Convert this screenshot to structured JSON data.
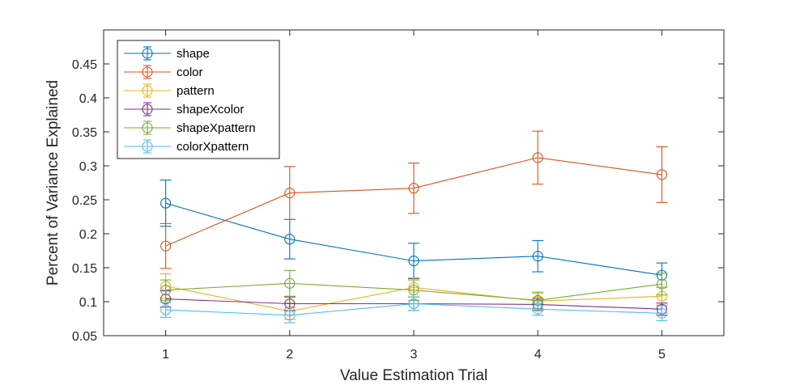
{
  "chart_data": {
    "type": "line",
    "title": "",
    "xlabel": "Value Estimation Trial",
    "ylabel": "Percent of Variance Explained",
    "x": [
      1,
      2,
      3,
      4,
      5
    ],
    "xlim": [
      0.5,
      5.5
    ],
    "ylim": [
      0.05,
      0.5
    ],
    "xticks": [
      "1",
      "2",
      "3",
      "4",
      "5"
    ],
    "yticks": [
      "0.05",
      "0.1",
      "0.15",
      "0.2",
      "0.25",
      "0.3",
      "0.35",
      "0.4",
      "0.45"
    ],
    "grid": false,
    "legend_position": "top-left",
    "marker": "open-circle",
    "series": [
      {
        "name": "shape",
        "color": "#0072BD",
        "values": [
          0.245,
          0.192,
          0.16,
          0.167,
          0.139
        ],
        "errors": [
          0.034,
          0.029,
          0.026,
          0.023,
          0.018
        ]
      },
      {
        "name": "color",
        "color": "#D95319",
        "values": [
          0.182,
          0.26,
          0.267,
          0.312,
          0.287
        ],
        "errors": [
          0.033,
          0.039,
          0.037,
          0.039,
          0.041
        ]
      },
      {
        "name": "pattern",
        "color": "#EDB120",
        "values": [
          0.123,
          0.086,
          0.121,
          0.101,
          0.108
        ],
        "errors": [
          0.018,
          0.012,
          0.014,
          0.011,
          0.013
        ]
      },
      {
        "name": "shapeXcolor",
        "color": "#7E2F8E",
        "values": [
          0.104,
          0.097,
          0.097,
          0.096,
          0.089
        ],
        "errors": [
          0.012,
          0.01,
          0.01,
          0.009,
          0.009
        ]
      },
      {
        "name": "shapeXpattern",
        "color": "#77AC30",
        "values": [
          0.117,
          0.127,
          0.117,
          0.102,
          0.126
        ],
        "errors": [
          0.015,
          0.019,
          0.015,
          0.012,
          0.016
        ]
      },
      {
        "name": "colorXpattern",
        "color": "#4DBEEE",
        "values": [
          0.088,
          0.08,
          0.097,
          0.089,
          0.083
        ],
        "errors": [
          0.011,
          0.011,
          0.01,
          0.009,
          0.011
        ]
      }
    ]
  }
}
